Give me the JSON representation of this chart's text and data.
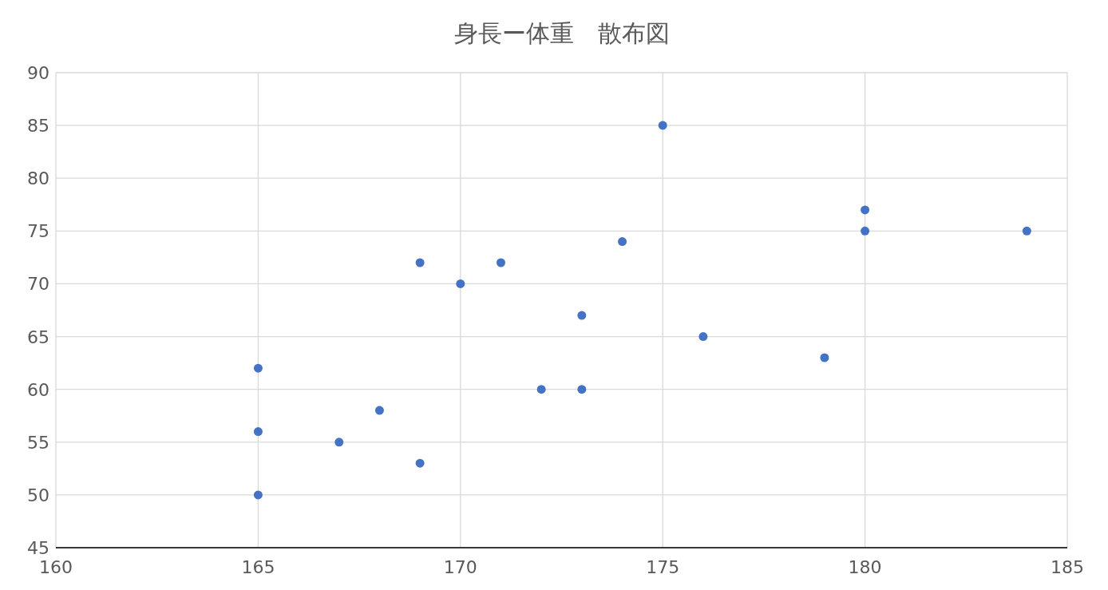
{
  "chart_data": {
    "type": "scatter",
    "title": "身長ー体重　散布図",
    "x": [
      165,
      165,
      165,
      167,
      168,
      169,
      169,
      170,
      171,
      172,
      173,
      173,
      174,
      175,
      176,
      179,
      180,
      180,
      184
    ],
    "values": [
      62,
      56,
      50,
      55,
      58,
      53,
      72,
      70,
      72,
      60,
      60,
      67,
      74,
      85,
      65,
      63,
      77,
      75,
      75
    ],
    "color": "#4472c4",
    "marker": "circle",
    "xlim": [
      160,
      185
    ],
    "xticks": [
      160,
      165,
      170,
      175,
      180,
      185
    ],
    "ylim": [
      45,
      90
    ],
    "yticks": [
      45,
      50,
      55,
      60,
      65,
      70,
      75,
      80,
      85,
      90
    ],
    "grid": true
  }
}
